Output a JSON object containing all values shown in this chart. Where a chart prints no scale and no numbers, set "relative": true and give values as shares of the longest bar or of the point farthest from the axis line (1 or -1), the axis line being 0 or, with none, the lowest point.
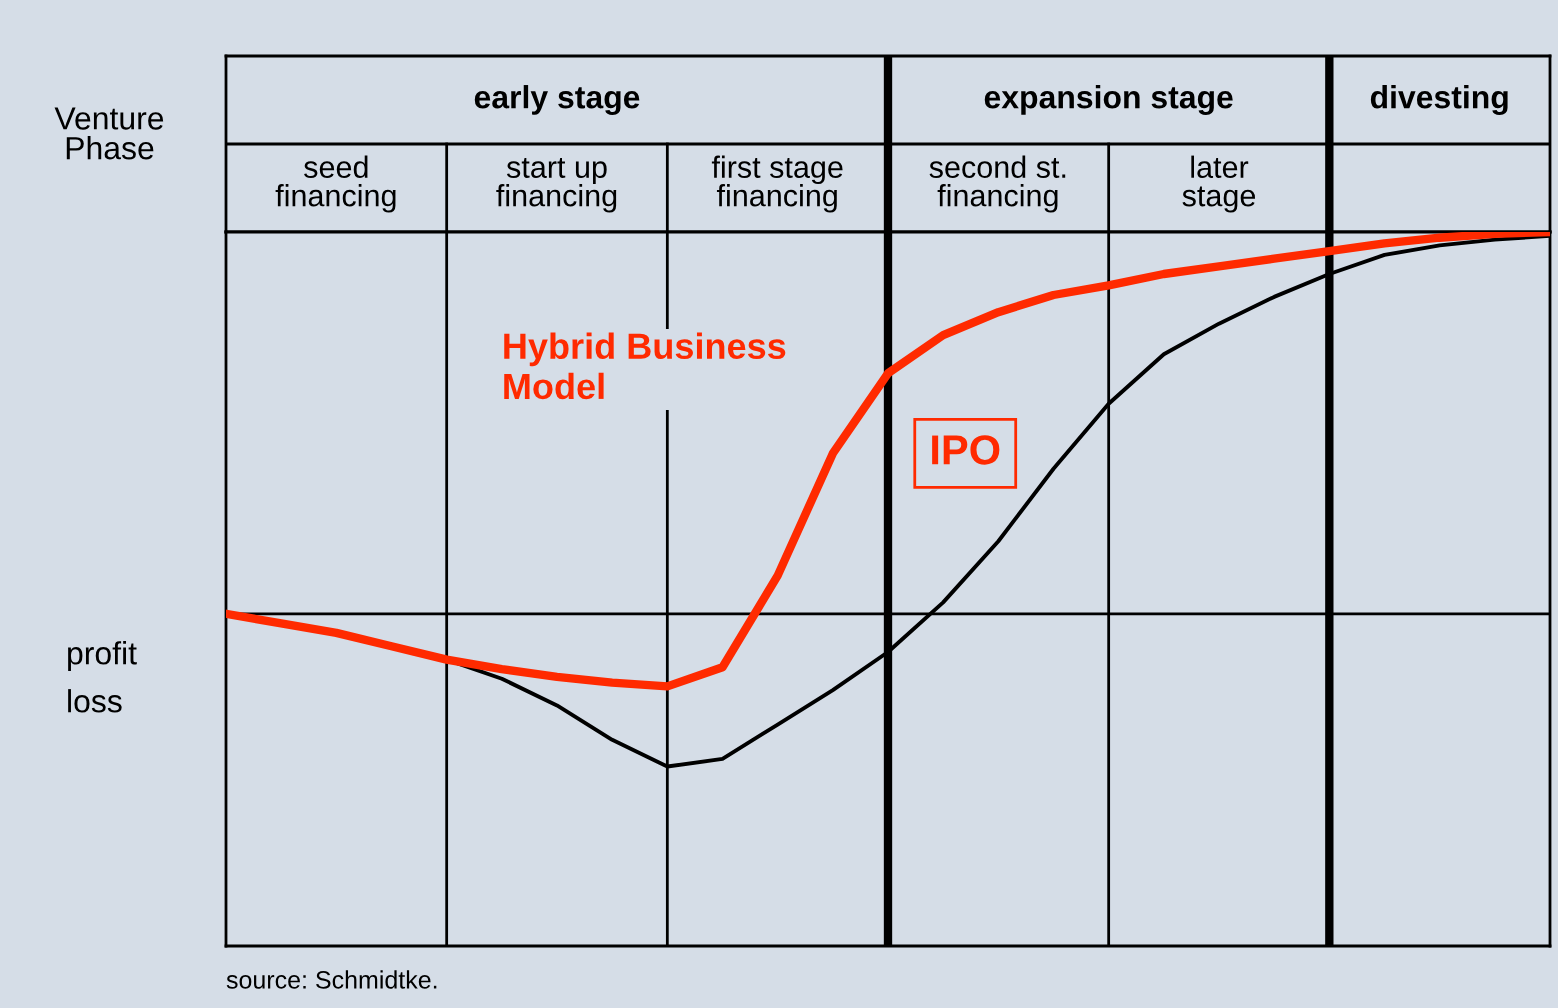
{
  "chart_data": {
    "type": "line",
    "relative": true,
    "categories": [
      null,
      null,
      "seed\nfinancing",
      null,
      null,
      null,
      "start up\nfinancing",
      null,
      null,
      null,
      "first stage\nfinancing",
      null,
      null,
      null,
      "second st.\nfinancing",
      null,
      null,
      null,
      "later\nstage",
      null,
      null,
      null,
      null,
      null,
      null
    ],
    "series": [
      {
        "name": "Hybrid Business Model",
        "color": "#ff2a00",
        "values": [
          0,
          -0.025,
          -0.05,
          -0.085,
          -0.12,
          -0.145,
          -0.165,
          -0.18,
          -0.19,
          -0.14,
          0.1,
          0.42,
          0.63,
          0.73,
          0.79,
          0.835,
          0.86,
          0.89,
          0.91,
          0.93,
          0.95,
          0.97,
          0.985,
          0.995,
          1.0
        ]
      },
      {
        "color": "#000000",
        "values": [
          0,
          -0.025,
          -0.05,
          -0.085,
          -0.12,
          -0.17,
          -0.24,
          -0.33,
          -0.4,
          -0.38,
          -0.29,
          -0.2,
          -0.1,
          0.03,
          0.19,
          0.38,
          0.55,
          0.68,
          0.76,
          0.83,
          0.89,
          0.94,
          0.965,
          0.98,
          0.99
        ]
      }
    ],
    "annotations": [
      "Venture\nPhase",
      "profit",
      "loss",
      "source: Schmidtke.",
      "IPO",
      "early stage",
      "expansion stage",
      "divesting"
    ],
    "grid": "x",
    "legend": false
  }
}
